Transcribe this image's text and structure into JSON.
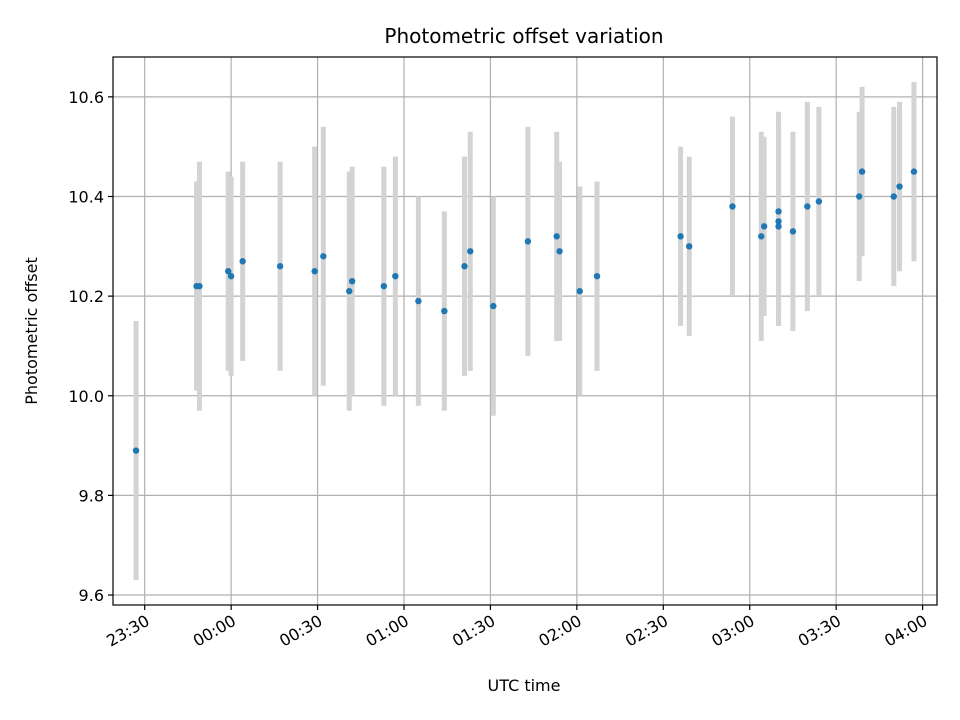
{
  "chart_data": {
    "type": "scatter",
    "title": "Photometric offset variation",
    "xlabel": "UTC time",
    "ylabel": "Photometric offset",
    "x_axis_kind": "time",
    "xlim": [
      "23:19",
      "04:05"
    ],
    "ylim": [
      9.58,
      10.68
    ],
    "grid": true,
    "x_ticks": [
      "23:30",
      "00:00",
      "00:30",
      "01:00",
      "01:30",
      "02:00",
      "02:30",
      "03:00",
      "03:30",
      "04:00"
    ],
    "y_ticks": [
      9.6,
      9.8,
      10.0,
      10.2,
      10.4,
      10.6
    ],
    "y_tick_labels": [
      "9.6",
      "9.8",
      "10.0",
      "10.2",
      "10.4",
      "10.6"
    ],
    "marker_color": "#1f77b4",
    "errorbar_color": "#d3d3d3",
    "points": [
      {
        "x": "23:27",
        "y": 9.89,
        "err": 0.26
      },
      {
        "x": "23:48",
        "y": 10.22,
        "err": 0.21
      },
      {
        "x": "23:49",
        "y": 10.22,
        "err": 0.25
      },
      {
        "x": "23:59",
        "y": 10.25,
        "err": 0.2
      },
      {
        "x": "00:00",
        "y": 10.24,
        "err": 0.2
      },
      {
        "x": "00:04",
        "y": 10.27,
        "err": 0.2
      },
      {
        "x": "00:17",
        "y": 10.26,
        "err": 0.21
      },
      {
        "x": "00:29",
        "y": 10.25,
        "err": 0.25
      },
      {
        "x": "00:32",
        "y": 10.28,
        "err": 0.26
      },
      {
        "x": "00:41",
        "y": 10.21,
        "err": 0.24
      },
      {
        "x": "00:42",
        "y": 10.23,
        "err": 0.23
      },
      {
        "x": "00:53",
        "y": 10.22,
        "err": 0.24
      },
      {
        "x": "00:57",
        "y": 10.24,
        "err": 0.24
      },
      {
        "x": "01:05",
        "y": 10.19,
        "err": 0.21
      },
      {
        "x": "01:14",
        "y": 10.17,
        "err": 0.2
      },
      {
        "x": "01:21",
        "y": 10.26,
        "err": 0.22
      },
      {
        "x": "01:23",
        "y": 10.29,
        "err": 0.24
      },
      {
        "x": "01:31",
        "y": 10.18,
        "err": 0.22
      },
      {
        "x": "01:43",
        "y": 10.31,
        "err": 0.23
      },
      {
        "x": "01:53",
        "y": 10.32,
        "err": 0.21
      },
      {
        "x": "01:54",
        "y": 10.29,
        "err": 0.18
      },
      {
        "x": "02:01",
        "y": 10.21,
        "err": 0.21
      },
      {
        "x": "02:07",
        "y": 10.24,
        "err": 0.19
      },
      {
        "x": "02:36",
        "y": 10.32,
        "err": 0.18
      },
      {
        "x": "02:39",
        "y": 10.3,
        "err": 0.18
      },
      {
        "x": "02:54",
        "y": 10.38,
        "err": 0.18
      },
      {
        "x": "03:04",
        "y": 10.32,
        "err": 0.21
      },
      {
        "x": "03:05",
        "y": 10.34,
        "err": 0.18
      },
      {
        "x": "03:10",
        "y": 10.37,
        "err": 0.2
      },
      {
        "x": "03:10",
        "y": 10.35,
        "err": 0.21
      },
      {
        "x": "03:10",
        "y": 10.34,
        "err": 0.2
      },
      {
        "x": "03:15",
        "y": 10.33,
        "err": 0.2
      },
      {
        "x": "03:20",
        "y": 10.38,
        "err": 0.21
      },
      {
        "x": "03:24",
        "y": 10.39,
        "err": 0.19
      },
      {
        "x": "03:38",
        "y": 10.4,
        "err": 0.17
      },
      {
        "x": "03:39",
        "y": 10.45,
        "err": 0.17
      },
      {
        "x": "03:50",
        "y": 10.4,
        "err": 0.18
      },
      {
        "x": "03:52",
        "y": 10.42,
        "err": 0.17
      },
      {
        "x": "03:57",
        "y": 10.45,
        "err": 0.18
      }
    ]
  }
}
